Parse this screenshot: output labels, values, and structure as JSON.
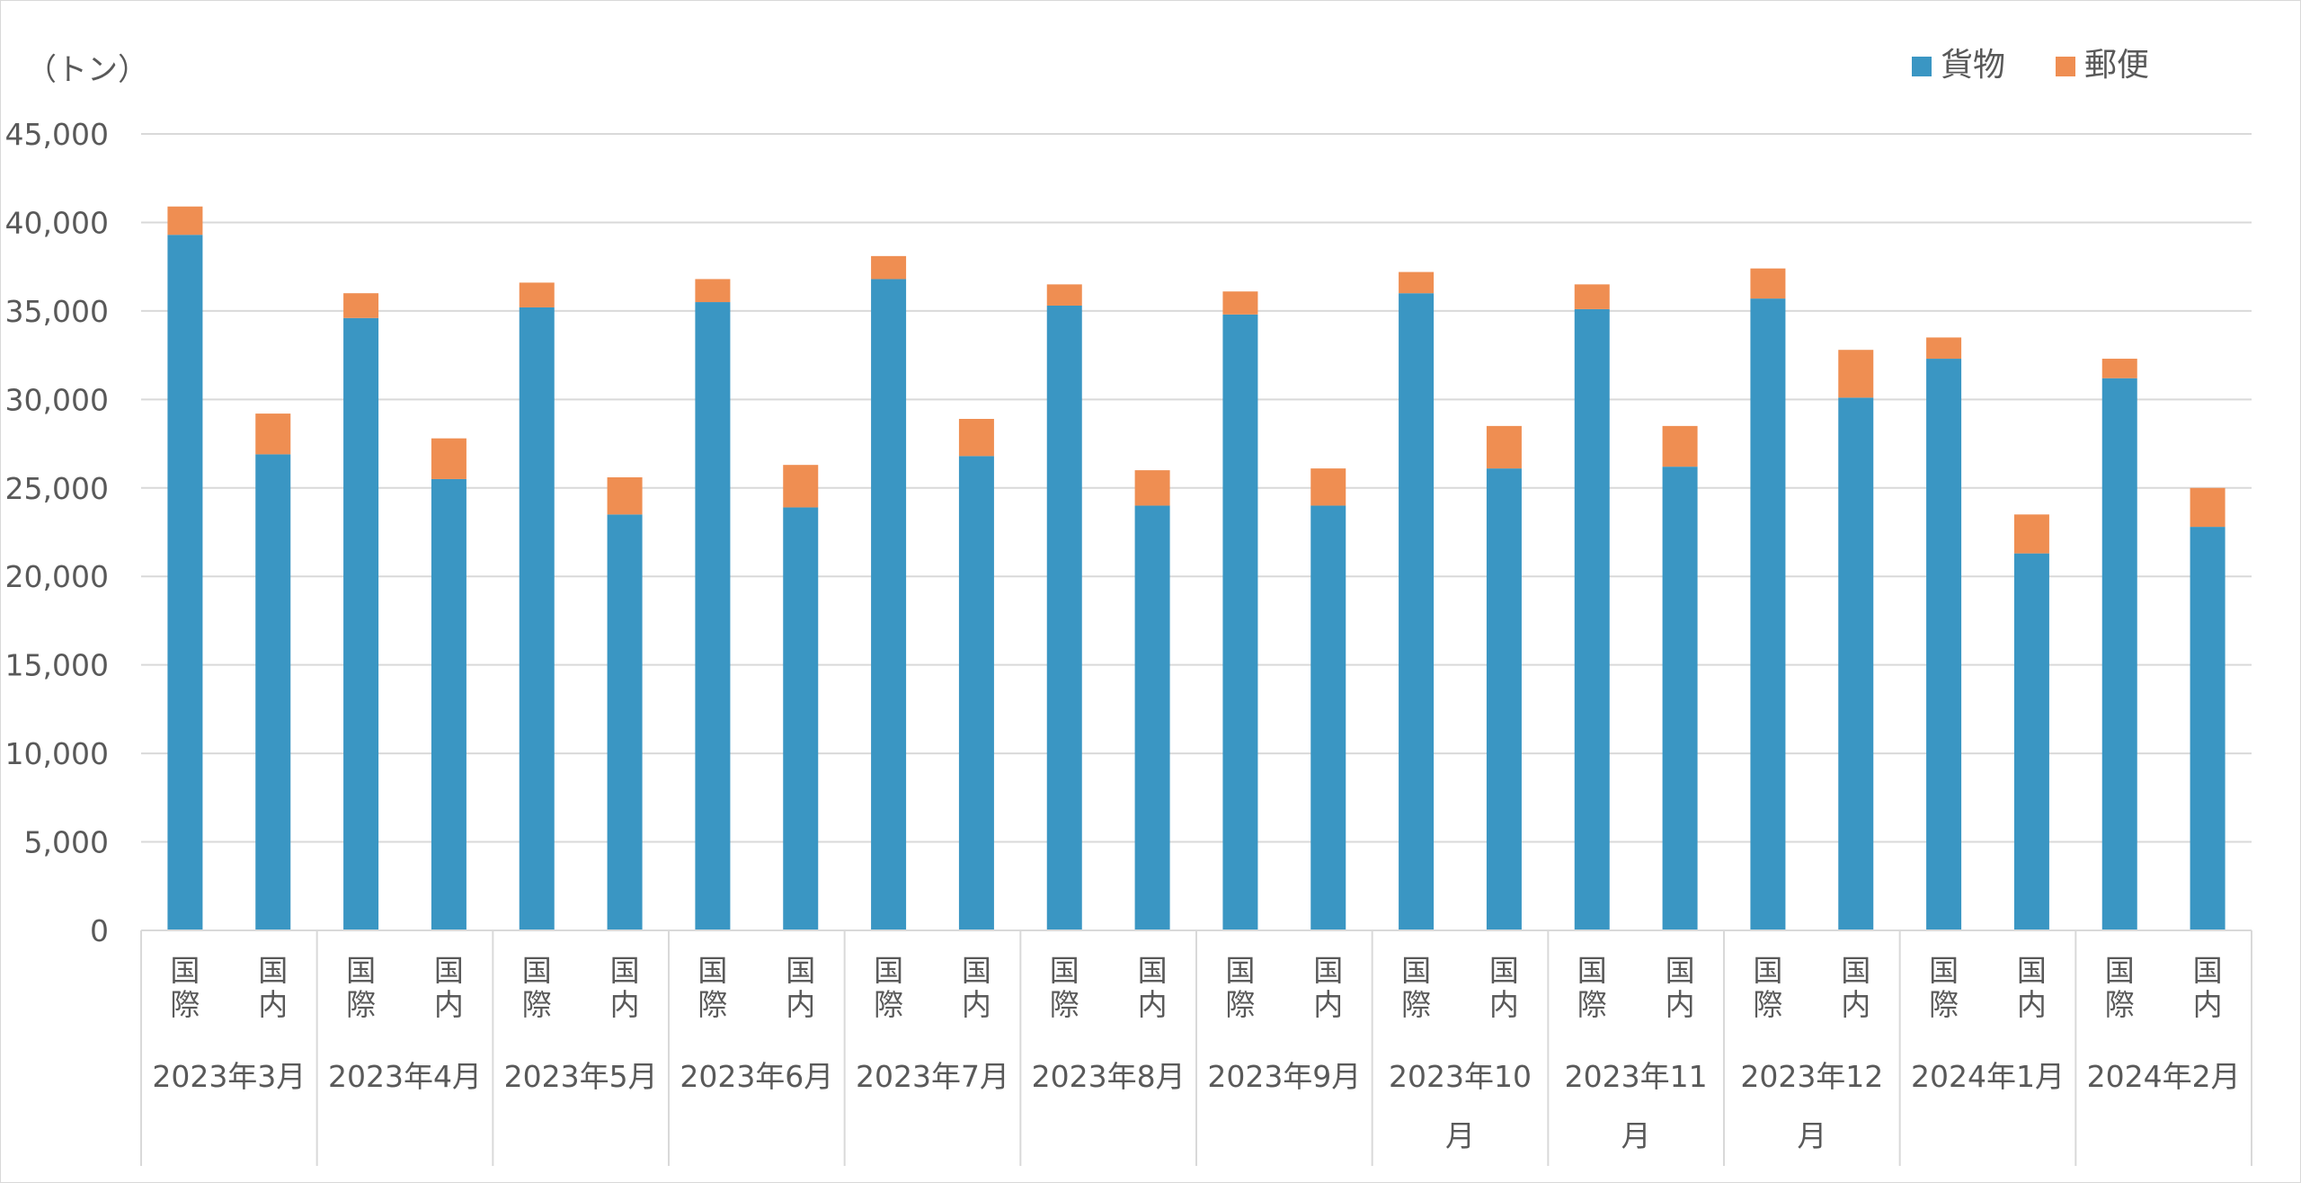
{
  "chart_data": {
    "type": "bar",
    "stacked": true,
    "unit_label": "（トン）",
    "legend": {
      "position": "top-right"
    },
    "grid": true,
    "ylim": [
      0,
      45000
    ],
    "yticks": [
      "0",
      "5,000",
      "10,000",
      "15,000",
      "20,000",
      "25,000",
      "30,000",
      "35,000",
      "40,000",
      "45,000"
    ],
    "colors": {
      "cargo": "#3A96C3",
      "mail": "#EF8E52"
    },
    "groups": [
      {
        "label": "2023年3月",
        "label_lines": [
          "2023年3月"
        ]
      },
      {
        "label": "2023年4月",
        "label_lines": [
          "2023年4月"
        ]
      },
      {
        "label": "2023年5月",
        "label_lines": [
          "2023年5月"
        ]
      },
      {
        "label": "2023年6月",
        "label_lines": [
          "2023年6月"
        ]
      },
      {
        "label": "2023年7月",
        "label_lines": [
          "2023年7月"
        ]
      },
      {
        "label": "2023年8月",
        "label_lines": [
          "2023年8月"
        ]
      },
      {
        "label": "2023年9月",
        "label_lines": [
          "2023年9月"
        ]
      },
      {
        "label": "2023年10月",
        "label_lines": [
          "2023年10",
          "月"
        ]
      },
      {
        "label": "2023年11月",
        "label_lines": [
          "2023年11",
          "月"
        ]
      },
      {
        "label": "2023年12月",
        "label_lines": [
          "2023年12",
          "月"
        ]
      },
      {
        "label": "2024年1月",
        "label_lines": [
          "2024年1月"
        ]
      },
      {
        "label": "2024年2月",
        "label_lines": [
          "2024年2月"
        ]
      }
    ],
    "subcategories": [
      {
        "label": "国際",
        "chars": [
          "国",
          "際"
        ]
      },
      {
        "label": "国内",
        "chars": [
          "国",
          "内"
        ]
      }
    ],
    "series": [
      {
        "name": "貨物",
        "key": "cargo",
        "values": [
          39300,
          26900,
          34600,
          25500,
          35200,
          23500,
          35500,
          23900,
          36800,
          26800,
          35300,
          24000,
          34800,
          24000,
          36000,
          26100,
          35100,
          26200,
          35700,
          30100,
          32300,
          21300,
          31200,
          22800
        ]
      },
      {
        "name": "郵便",
        "key": "mail",
        "values": [
          1600,
          2300,
          1400,
          2300,
          1400,
          2100,
          1300,
          2400,
          1300,
          2100,
          1200,
          2000,
          1300,
          2100,
          1200,
          2400,
          1400,
          2300,
          1700,
          2700,
          1200,
          2200,
          1100,
          2200
        ]
      }
    ]
  }
}
